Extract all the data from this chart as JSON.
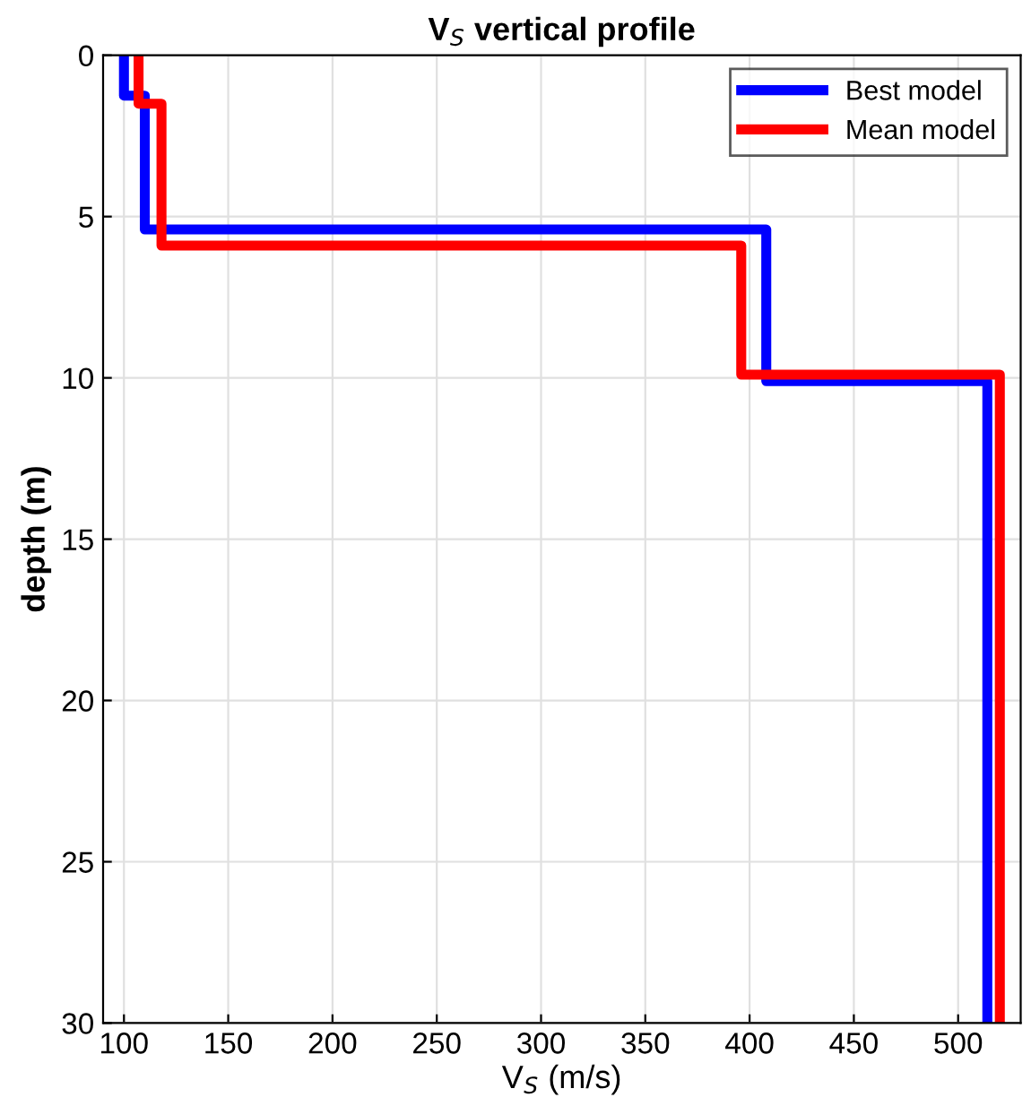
{
  "chart_data": {
    "type": "line",
    "title": "V$_{S}$ vertical profile",
    "xlabel": "V$_{S}$ (m/s)",
    "ylabel": "depth (m)",
    "xlim": [
      90,
      530
    ],
    "xticks": [
      100,
      150,
      200,
      250,
      300,
      350,
      400,
      450,
      500
    ],
    "ylim": [
      30,
      0
    ],
    "yticks": [
      0,
      5,
      10,
      15,
      20,
      25,
      30
    ],
    "grid": true,
    "legend": "top right",
    "series": [
      {
        "name": "Best model",
        "color": "#0000ff",
        "x": [
          100,
          100,
          110,
          110,
          408,
          408,
          514,
          514
        ],
        "values": [
          0,
          1.25,
          1.25,
          5.4,
          5.4,
          10.1,
          10.1,
          30
        ]
      },
      {
        "name": "Mean model",
        "color": "#ff0000",
        "x": [
          107,
          107,
          118,
          118,
          396,
          396,
          520,
          520
        ],
        "values": [
          0,
          1.5,
          1.5,
          5.9,
          5.9,
          9.9,
          9.9,
          30
        ]
      }
    ]
  }
}
